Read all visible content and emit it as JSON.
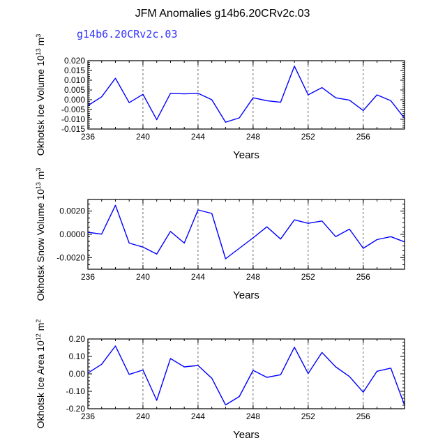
{
  "title": "JFM Anomalies g14b6.20CRv2c.03",
  "subtitle": "g14b6.20CRv2c.03",
  "colors": {
    "line": "#0000ff",
    "subtitle": "#3232ff",
    "axis": "#000000"
  },
  "chart_data": [
    {
      "type": "line",
      "ylabel": {
        "main": "Okhotsk Ice Volume",
        "unit": "10",
        "exp1": "13",
        "unit2": " m",
        "exp2": "3"
      },
      "xlabel": "Years",
      "xlim": [
        236,
        259
      ],
      "xticks": [
        236,
        240,
        244,
        248,
        252,
        256
      ],
      "xtick_labels": [
        "236",
        "240",
        "244",
        "248",
        "252",
        "256"
      ],
      "ylim": [
        -0.015,
        0.02
      ],
      "yticks": [
        -0.015,
        -0.01,
        -0.005,
        0.0,
        0.005,
        0.01,
        0.015,
        0.02
      ],
      "ytick_labels": [
        "-0.015",
        "-0.010",
        "-0.005",
        "0.000",
        "0.005",
        "0.010",
        "0.015",
        "0.020"
      ],
      "vlines": [
        240,
        244,
        248,
        252,
        256
      ],
      "x": [
        236,
        237,
        238,
        239,
        240,
        241,
        242,
        243,
        244,
        245,
        246,
        247,
        248,
        249,
        250,
        251,
        252,
        253,
        254,
        255,
        256,
        257,
        258,
        259
      ],
      "values": [
        -0.003,
        0.0015,
        0.011,
        -0.0015,
        0.0028,
        -0.0102,
        0.0033,
        0.003,
        0.0033,
        0.0,
        -0.0115,
        -0.0093,
        0.001,
        -0.0005,
        -0.0013,
        0.0172,
        0.0025,
        0.0062,
        0.001,
        -0.0002,
        -0.0055,
        0.0025,
        -0.0005,
        -0.0095
      ]
    },
    {
      "type": "line",
      "ylabel": {
        "main": "Okhotsk Snow Volume",
        "unit": "10",
        "exp1": "13",
        "unit2": " m",
        "exp2": "3"
      },
      "xlabel": "Years",
      "xlim": [
        236,
        259
      ],
      "xticks": [
        236,
        240,
        244,
        248,
        252,
        256
      ],
      "xtick_labels": [
        "236",
        "240",
        "244",
        "248",
        "252",
        "256"
      ],
      "ylim": [
        -0.003,
        0.003
      ],
      "yticks": [
        -0.002,
        0.0,
        0.002
      ],
      "ytick_labels": [
        "-0.0020",
        "0.0000",
        "0.0020"
      ],
      "vlines": [
        240,
        244,
        248,
        252,
        256
      ],
      "x": [
        236,
        237,
        238,
        239,
        240,
        241,
        242,
        243,
        244,
        245,
        246,
        247,
        248,
        249,
        250,
        251,
        252,
        253,
        254,
        255,
        256,
        257,
        258,
        259
      ],
      "values": [
        0.00018,
        2e-05,
        0.0025,
        -0.00075,
        -0.0011,
        -0.0017,
        0.00025,
        -0.00075,
        0.0021,
        0.0018,
        -0.0021,
        -0.0012,
        -0.0003,
        0.00065,
        -0.0004,
        0.00125,
        0.00095,
        0.00115,
        -0.0002,
        0.00045,
        -0.0012,
        -0.00045,
        -0.0002,
        -0.00065
      ]
    },
    {
      "type": "line",
      "ylabel": {
        "main": "Okhotsk Ice Area",
        "unit": "10",
        "exp1": "12",
        "unit2": " m",
        "exp2": "2"
      },
      "xlabel": "Years",
      "xlim": [
        236,
        259
      ],
      "xticks": [
        236,
        240,
        244,
        248,
        252,
        256
      ],
      "xtick_labels": [
        "236",
        "240",
        "244",
        "248",
        "252",
        "256"
      ],
      "ylim": [
        -0.2,
        0.2
      ],
      "yticks": [
        -0.2,
        -0.1,
        0.0,
        0.1,
        0.2
      ],
      "ytick_labels": [
        "-0.20",
        "-0.10",
        "0.00",
        "0.10",
        "0.20"
      ],
      "vlines": [
        240,
        244,
        248,
        252,
        256
      ],
      "x": [
        236,
        237,
        238,
        239,
        240,
        241,
        242,
        243,
        244,
        245,
        246,
        247,
        248,
        249,
        250,
        251,
        252,
        253,
        254,
        255,
        256,
        257,
        258,
        259
      ],
      "values": [
        0.005,
        0.055,
        0.16,
        -0.003,
        0.022,
        -0.152,
        0.088,
        0.04,
        0.048,
        -0.025,
        -0.178,
        -0.13,
        0.02,
        -0.02,
        -0.005,
        0.153,
        0.002,
        0.123,
        0.04,
        -0.015,
        -0.105,
        0.015,
        0.033,
        -0.18
      ]
    }
  ]
}
